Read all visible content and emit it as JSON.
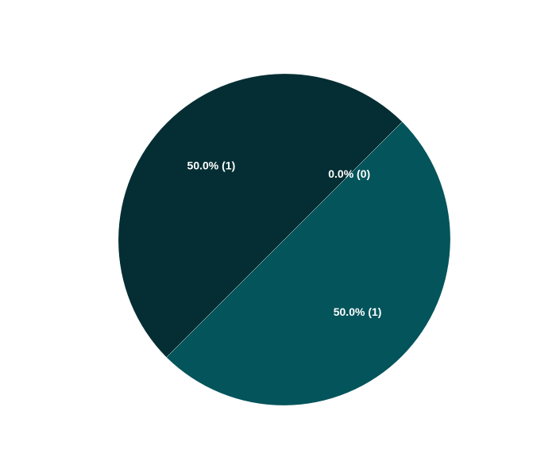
{
  "chart_data": {
    "type": "pie",
    "title": "",
    "start_angle_deg": -45,
    "direction": "clockwise",
    "slices": [
      {
        "label": "50.0% (1)",
        "value": 1,
        "color": "#03545B"
      },
      {
        "label": "50.0% (1)",
        "value": 1,
        "color": "#042E33"
      },
      {
        "label": "0.0% (0)",
        "value": 0,
        "color": "#0A6F78"
      }
    ]
  }
}
